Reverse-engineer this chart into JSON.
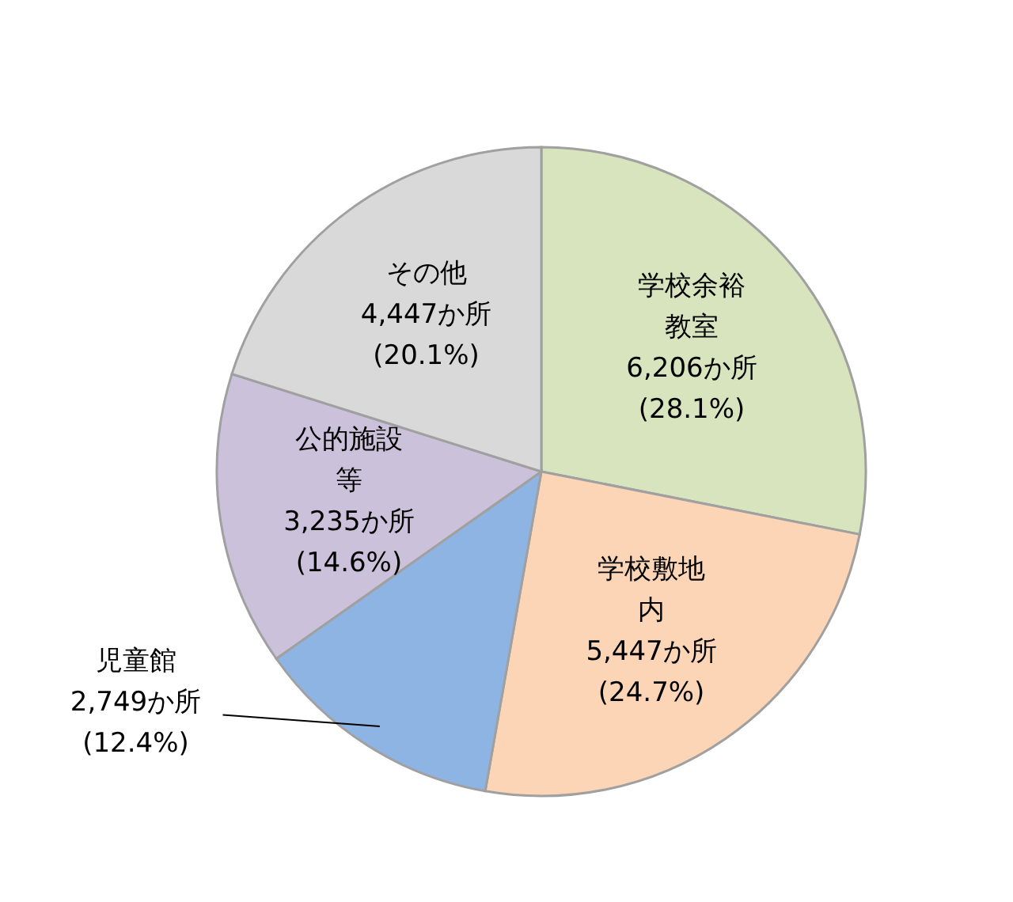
{
  "chart_data": {
    "type": "pie",
    "categories": [
      "学校余裕教室",
      "学校敷地内",
      "児童館",
      "公的施設等",
      "その他"
    ],
    "values": [
      6206,
      5447,
      2749,
      3235,
      4447
    ],
    "colors": [
      "#d7e4bd",
      "#fbd5b5",
      "#8eb4e3",
      "#ccc1da",
      "#d9d9d9"
    ],
    "value_labels": [
      "6,206か所\n(28.1%)",
      "5,447か所\n(24.7%)",
      "2,749か所\n(12.4%)",
      "3,235か所\n(14.6%)",
      "4,447か所\n(20.1%)"
    ]
  }
}
